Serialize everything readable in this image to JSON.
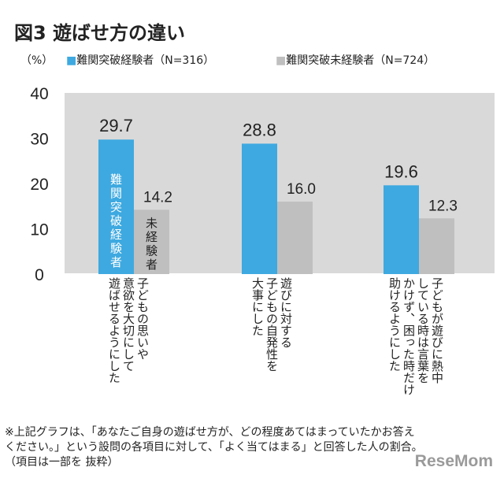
{
  "title": "図3 遊ばせ方の違い",
  "watermark": "ReseMom",
  "footnote": [
    "※上記グラフは、「あなたご自身の遊ばせ方が、どの程度あてはまっていたかお答え",
    "ください。」という設問の各項目に対して、「よく当てはまる」と回答した人の割合。",
    "（項目は一部を 抜粋）"
  ],
  "chart_data": {
    "type": "bar",
    "title": "図3 遊ばせ方の違い",
    "ylabel": "（%）",
    "ylim": [
      0,
      40
    ],
    "yticks": [
      "0",
      "10",
      "20",
      "30",
      "40"
    ],
    "grid": false,
    "legend_position": "top",
    "categories": [
      "子どもの思いや\n意欲を大切にして\n遊ばせるようにした",
      "遊びに対する\n子どもの自発性を\n大事にした",
      "子どもが遊びに熱中\nしている時は言葉を\nかけず、困った時だけ\n助けるようにした"
    ],
    "series": [
      {
        "name": "■難関突破経験者（N=316）",
        "bar_label": "難関突破経験者",
        "color": "#3ea9e0",
        "values": [
          29.7,
          28.8,
          19.6
        ],
        "labels": [
          "29.7",
          "28.8",
          "19.6"
        ]
      },
      {
        "name": "■難関突破未経験者（N=724）",
        "bar_label": "未経験者",
        "color": "#bfbfbf",
        "values": [
          14.2,
          16.0,
          12.3
        ],
        "labels": [
          "14.2",
          "16.0",
          "12.3"
        ]
      }
    ],
    "plot_background": "#d9d9d9"
  }
}
